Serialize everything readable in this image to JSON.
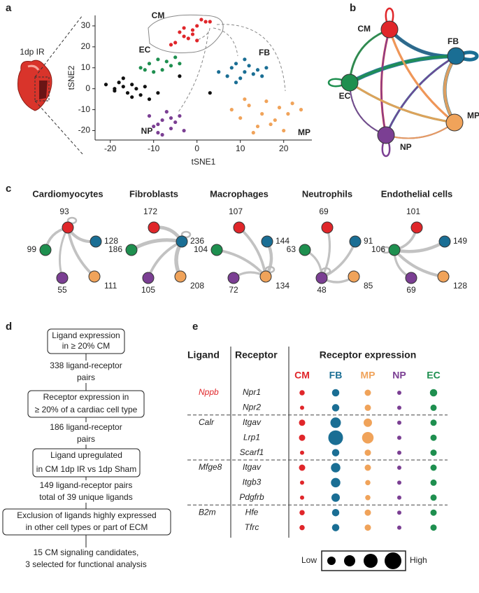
{
  "panel_labels": [
    "a",
    "b",
    "c",
    "d",
    "e"
  ],
  "sample_label": "1dp IR",
  "cell_types": [
    {
      "name": "CM",
      "color": "#e0262a"
    },
    {
      "name": "FB",
      "color": "#1a6e94"
    },
    {
      "name": "EC",
      "color": "#1e8f4f"
    },
    {
      "name": "NP",
      "color": "#7b3f93"
    },
    {
      "name": "MP",
      "color": "#f0a35a"
    }
  ],
  "cell_panels": [
    {
      "title": "Cardiomyocytes",
      "counts": [
        93,
        128,
        99,
        55,
        111
      ]
    },
    {
      "title": "Fibroblasts",
      "counts": [
        172,
        236,
        186,
        105,
        208
      ]
    },
    {
      "title": "Macrophages",
      "counts": [
        107,
        144,
        104,
        72,
        134
      ]
    },
    {
      "title": "Neutrophils",
      "counts": [
        69,
        91,
        63,
        48,
        85
      ]
    },
    {
      "title": "Endothelial cells",
      "counts": [
        101,
        149,
        106,
        69,
        128
      ]
    }
  ],
  "flowchart": {
    "boxes": [
      [
        "Ligand expression",
        "in ≥ 20% CM"
      ],
      [
        "Receptor expression in",
        "≥ 20% of a cardiac cell type"
      ],
      [
        "Ligand upregulated",
        "in CM 1dp IR vs 1dp Sham"
      ],
      [
        "Exclusion of ligands highly expressed",
        "in other cell types or part of ECM"
      ]
    ],
    "results": [
      [
        "338 ligand-receptor",
        "pairs"
      ],
      [
        "186 ligand-receptor",
        "pairs"
      ],
      [
        "149 ligand-receptor pairs",
        "total of 39 unique ligands"
      ],
      [
        "15 CM signaling candidates,",
        "3 selected for functional analysis"
      ]
    ]
  },
  "chart_data": [
    {
      "type": "scatter",
      "xlabel": "tSNE1",
      "ylabel": "tSNE2",
      "xlim": [
        -23.5,
        26.5
      ],
      "ylim": [
        -24.5,
        35
      ],
      "xticks": [
        -20,
        -10,
        0,
        10,
        20
      ],
      "yticks": [
        -20,
        -10,
        0,
        10,
        20,
        30
      ],
      "series": [
        {
          "name": "CM",
          "color": "#e0262a",
          "x": [
            -5,
            -3,
            -1,
            0,
            1,
            2,
            -4,
            -2,
            -6,
            -1,
            3,
            0,
            -3
          ],
          "y": [
            22,
            25,
            28,
            30,
            33,
            32,
            27,
            24,
            21,
            26,
            32,
            23,
            29
          ]
        },
        {
          "name": "EC",
          "color": "#1e8f4f",
          "x": [
            -13,
            -11,
            -9,
            -7,
            -5,
            -4,
            -8,
            -10,
            -6,
            -12
          ],
          "y": [
            10,
            12,
            14,
            13,
            15,
            12,
            9,
            8,
            11,
            9
          ]
        },
        {
          "color": "#111111",
          "x": [
            -21,
            -19,
            -18,
            -17,
            -16,
            -15,
            -14,
            -13,
            -12,
            -11,
            -17,
            -15,
            -19,
            -9,
            -4,
            3
          ],
          "y": [
            2,
            0,
            3,
            1,
            -2,
            2,
            0,
            -3,
            1,
            -5,
            5,
            -4,
            -1,
            -2,
            6,
            -2
          ]
        },
        {
          "name": "FB",
          "color": "#1a6e94",
          "x": [
            5,
            7,
            8,
            9,
            10,
            11,
            12,
            13,
            14,
            15,
            9,
            11,
            16
          ],
          "y": [
            8,
            6,
            10,
            12,
            5,
            8,
            11,
            7,
            9,
            6,
            3,
            14,
            10
          ]
        },
        {
          "name": "MP",
          "color": "#f0a35a",
          "x": [
            8,
            10,
            12,
            14,
            15,
            16,
            18,
            19,
            20,
            21,
            22,
            24,
            13,
            17,
            11
          ],
          "y": [
            -10,
            -14,
            -8,
            -18,
            -12,
            -6,
            -15,
            -9,
            -20,
            -12,
            -7,
            -10,
            -21,
            -17,
            -5
          ]
        },
        {
          "name": "NP",
          "color": "#7b3f93",
          "x": [
            -11,
            -10,
            -9,
            -8,
            -7,
            -6,
            -5,
            -4,
            -3,
            -8,
            -6,
            -9
          ],
          "y": [
            -13,
            -18,
            -21,
            -15,
            -11,
            -19,
            -16,
            -13,
            -20,
            -22,
            -14,
            -17
          ]
        }
      ]
    },
    {
      "type": "dot",
      "title": "Receptor expression",
      "ligand_header": "Ligand",
      "receptor_header": "Receptor",
      "ligands": [
        "Nppb",
        null,
        "Calr",
        null,
        null,
        "Mfge8",
        null,
        null,
        "B2m",
        null
      ],
      "ligand_colors": [
        "#e0262a",
        null,
        "#222222",
        null,
        null,
        "#222222",
        null,
        null,
        "#222222",
        null
      ],
      "categories": [
        "Npr1",
        "Npr2",
        "Itgav",
        "Lrp1",
        "Scarf1",
        "Itgav",
        "Itgb3",
        "Pdgfrb",
        "Hfe",
        "Tfrc"
      ],
      "series": [
        {
          "name": "CM",
          "color": "#e0262a",
          "values": [
            5,
            4,
            6,
            6,
            4,
            6,
            4,
            4,
            5,
            5
          ]
        },
        {
          "name": "FB",
          "color": "#1a6e94",
          "values": [
            7,
            7,
            10,
            14,
            7,
            9,
            9,
            8,
            7,
            7
          ]
        },
        {
          "name": "MP",
          "color": "#f0a35a",
          "values": [
            6,
            6,
            8,
            11,
            6,
            6,
            5,
            5,
            6,
            6
          ]
        },
        {
          "name": "NP",
          "color": "#7b3f93",
          "values": [
            4,
            4,
            4,
            4,
            4,
            4,
            4,
            4,
            4,
            4
          ]
        },
        {
          "name": "EC",
          "color": "#1e8f4f",
          "values": [
            7,
            6,
            6,
            6,
            6,
            6,
            6,
            6,
            6,
            6
          ]
        }
      ],
      "legend": {
        "low": "Low",
        "high": "High"
      }
    }
  ]
}
